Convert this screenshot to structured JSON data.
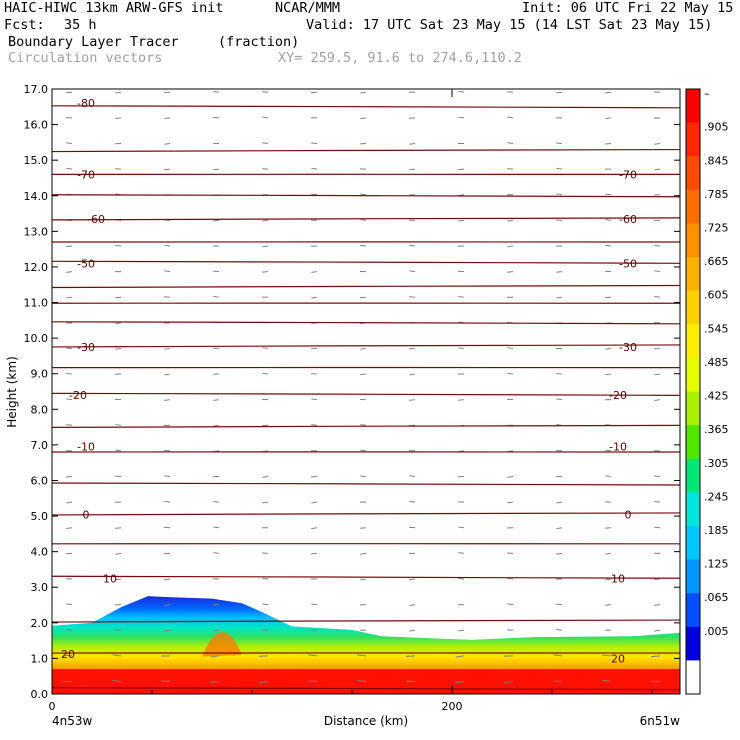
{
  "header": {
    "model": "HAIC-HIWC 13km ARW-GFS init",
    "org": "NCAR/MMM",
    "init": "Init: 06 UTC Fri 22 May 15",
    "fcst_label": "Fcst:",
    "fcst_value": "35 h",
    "valid": "Valid: 17 UTC Sat 23 May 15 (14 LST Sat 23 May 15)",
    "field_name": "Boundary Layer Tracer",
    "field_units": "(fraction)",
    "overlay": "Circulation vectors",
    "xy": "XY= 259.5, 91.6 to 274.6,110.2"
  },
  "chart_data": {
    "type": "heatmap",
    "ylabel": "Height (km)",
    "xlabel": "Distance (km)",
    "ylim": [
      0,
      17
    ],
    "xlim": [
      0,
      314
    ],
    "y_ticks": [
      "0.0",
      "1.0",
      "2.0",
      "3.0",
      "4.0",
      "5.0",
      "6.0",
      "7.0",
      "8.0",
      "9.0",
      "10.0",
      "11.0",
      "12.0",
      "13.0",
      "14.0",
      "15.0",
      "16.0",
      "17.0"
    ],
    "x_ticks": [
      {
        "value": 0,
        "label": "0"
      },
      {
        "value": 200,
        "label": "200"
      }
    ],
    "x_end_labels": {
      "left": "4n53w",
      "right": "6n51w"
    },
    "colorbar_labels": [
      "–",
      ".905",
      ".845",
      ".785",
      ".725",
      ".665",
      ".605",
      ".545",
      ".485",
      ".425",
      ".365",
      ".305",
      ".245",
      ".185",
      ".125",
      ".065",
      ".005"
    ],
    "colorbar_colors": [
      "#ff0000",
      "#ff2800",
      "#ff4b00",
      "#ff6e00",
      "#ff9000",
      "#ffb000",
      "#ffd000",
      "#ffee00",
      "#e6ff00",
      "#a8f000",
      "#50e600",
      "#00e676",
      "#00e6dc",
      "#00c8ff",
      "#0096ff",
      "#0050ff",
      "#0000e0",
      "#ffffff"
    ],
    "isotherm_labels": [
      {
        "value": "-80",
        "km": 16.6,
        "x": 17
      },
      {
        "value": "-70",
        "km": 14.6,
        "x": 17
      },
      {
        "value": "-70",
        "km": 14.6,
        "x": 288
      },
      {
        "value": "-60",
        "km": 13.35,
        "x": 22
      },
      {
        "value": "-60",
        "km": 13.35,
        "x": 288
      },
      {
        "value": "-50",
        "km": 12.1,
        "x": 17
      },
      {
        "value": "-50",
        "km": 12.1,
        "x": 288
      },
      {
        "value": "-30",
        "km": 9.75,
        "x": 17
      },
      {
        "value": "-30",
        "km": 9.75,
        "x": 288
      },
      {
        "value": "-20",
        "km": 8.4,
        "x": 13
      },
      {
        "value": "-20",
        "km": 8.4,
        "x": 283
      },
      {
        "value": "-10",
        "km": 6.95,
        "x": 17
      },
      {
        "value": "-10",
        "km": 6.95,
        "x": 283
      },
      {
        "value": "0",
        "km": 5.05,
        "x": 17
      },
      {
        "value": "0",
        "km": 5.05,
        "x": 288
      },
      {
        "value": "10",
        "km": 3.25,
        "x": 29
      },
      {
        "value": "10",
        "km": 3.25,
        "x": 283
      },
      {
        "value": "20",
        "km": 1.12,
        "x": 8
      },
      {
        "value": "20",
        "km": 1.0,
        "x": 283
      }
    ],
    "isotherm_levels_km": [
      0.15,
      1.15,
      2.05,
      3.28,
      4.22,
      5.06,
      5.9,
      6.8,
      7.52,
      8.42,
      9.17,
      9.78,
      10.43,
      10.98,
      11.45,
      12.13,
      12.7,
      13.35,
      14.0,
      14.6,
      15.27,
      16.5
    ],
    "tracer_top_km": [
      {
        "x": 0,
        "km": 1.92
      },
      {
        "x": 20,
        "km": 2.0
      },
      {
        "x": 35,
        "km": 2.45
      },
      {
        "x": 48,
        "km": 2.75
      },
      {
        "x": 60,
        "km": 2.72
      },
      {
        "x": 80,
        "km": 2.68
      },
      {
        "x": 95,
        "km": 2.55
      },
      {
        "x": 105,
        "km": 2.3
      },
      {
        "x": 120,
        "km": 1.9
      },
      {
        "x": 150,
        "km": 1.8
      },
      {
        "x": 165,
        "km": 1.62
      },
      {
        "x": 195,
        "km": 1.55
      },
      {
        "x": 210,
        "km": 1.52
      },
      {
        "x": 240,
        "km": 1.6
      },
      {
        "x": 290,
        "km": 1.62
      },
      {
        "x": 314,
        "km": 1.72
      }
    ]
  }
}
